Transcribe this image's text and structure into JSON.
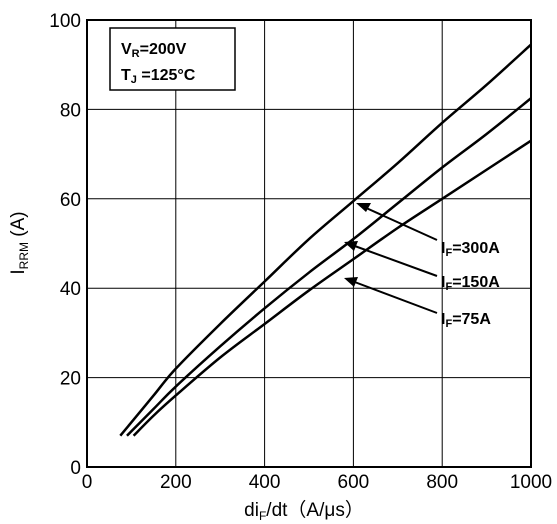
{
  "chart_data": {
    "type": "line",
    "xlabel": {
      "main": "di",
      "sub": "F",
      "rest": "/dt（A/μs）"
    },
    "ylabel": {
      "main": "I",
      "sub": "RRM",
      "rest": " (A)"
    },
    "xlim": [
      0,
      1000
    ],
    "ylim": [
      0,
      100
    ],
    "x_ticks": [
      "0",
      "200",
      "400",
      "600",
      "800",
      "1000"
    ],
    "y_ticks": [
      "0",
      "20",
      "40",
      "60",
      "80",
      "100"
    ],
    "grid": true,
    "conditions": [
      {
        "main": "V",
        "sub": "R",
        "rest": "=200V"
      },
      {
        "main": "T",
        "sub": "J",
        "rest": " =125°C"
      }
    ],
    "series": [
      {
        "name": {
          "main": "I",
          "sub": "F",
          "rest": "=300A"
        },
        "x": [
          75,
          100,
          150,
          200,
          300,
          400,
          500,
          600,
          700,
          800,
          900,
          1000
        ],
        "y": [
          7,
          10,
          16,
          22,
          32,
          41.5,
          51,
          59.5,
          68,
          77,
          85.5,
          94.5
        ]
      },
      {
        "name": {
          "main": "I",
          "sub": "F",
          "rest": "=150A"
        },
        "x": [
          90,
          150,
          200,
          300,
          400,
          500,
          600,
          700,
          800,
          900,
          1000
        ],
        "y": [
          7,
          13,
          18,
          27,
          35.5,
          43.5,
          51,
          59,
          67,
          74.5,
          82.5
        ]
      },
      {
        "name": {
          "main": "I",
          "sub": "F",
          "rest": "=75A"
        },
        "x": [
          105,
          150,
          200,
          300,
          400,
          500,
          600,
          700,
          800,
          900,
          1000
        ],
        "y": [
          7,
          11.5,
          16,
          24.5,
          32,
          39.5,
          46.5,
          53.5,
          60,
          66.5,
          73
        ]
      }
    ]
  }
}
